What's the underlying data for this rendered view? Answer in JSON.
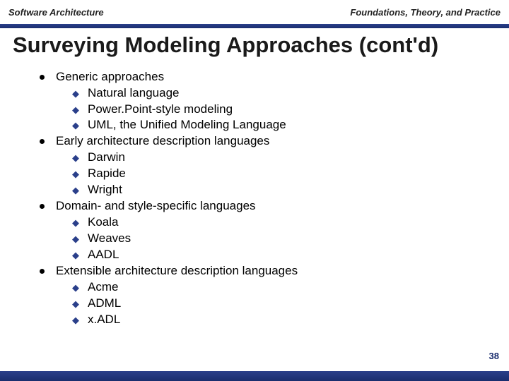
{
  "header": {
    "left": "Software Architecture",
    "right": "Foundations, Theory, and Practice"
  },
  "title": "Surveying Modeling Approaches (cont'd)",
  "page_number": "38",
  "colors": {
    "strip": "#1a2d6e",
    "arrow": "#2a3f8a",
    "text": "#000000",
    "bg": "#ffffff"
  },
  "bullets": [
    {
      "label": "Generic approaches",
      "sub": [
        "Natural language",
        "Power.Point-style modeling",
        "UML, the Unified Modeling Language"
      ]
    },
    {
      "label": "Early architecture description languages",
      "sub": [
        "Darwin",
        "Rapide",
        "Wright"
      ]
    },
    {
      "label": "Domain- and style-specific languages",
      "sub": [
        "Koala",
        "Weaves",
        "AADL"
      ]
    },
    {
      "label": "Extensible architecture description languages",
      "sub": [
        "Acme",
        "ADML",
        "x.ADL"
      ]
    }
  ]
}
